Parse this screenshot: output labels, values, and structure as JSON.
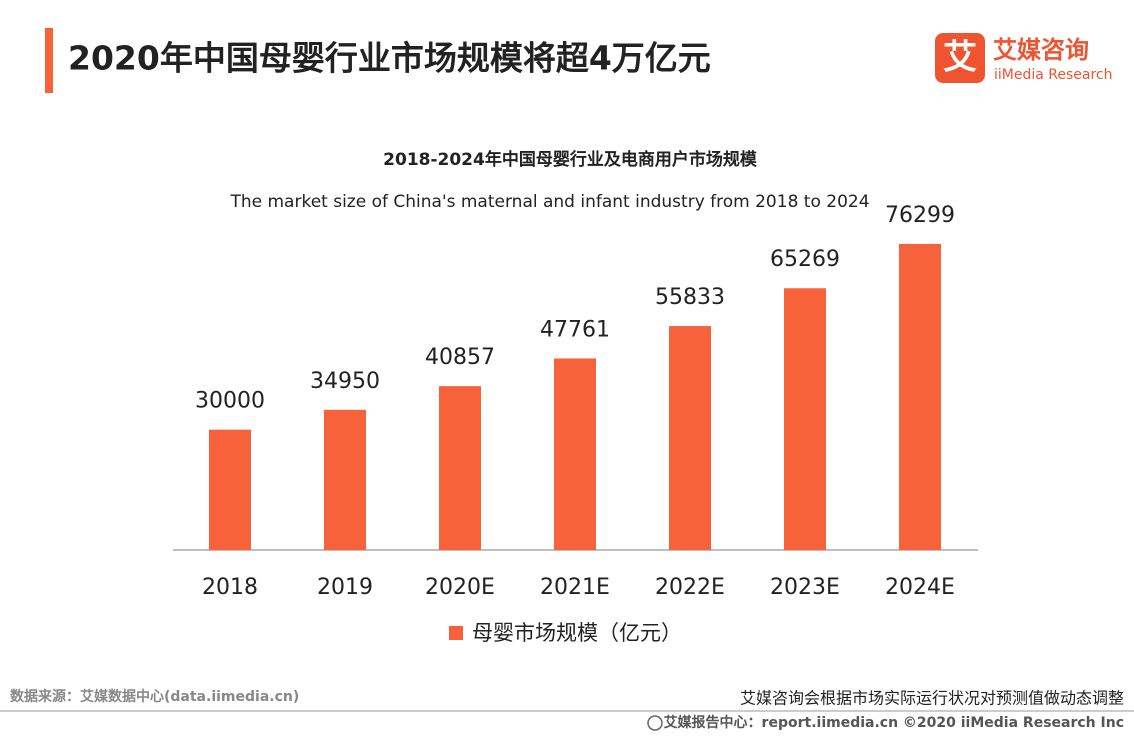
{
  "header": {
    "title": "2020年中国母婴行业市场规模将超4万亿元",
    "logo_mark": "艾",
    "logo_cn": "艾媒咨询",
    "logo_en": "iiMedia Research"
  },
  "chart_data": {
    "type": "bar",
    "title": "2018-2024年中国母婴行业及电商用户市场规模",
    "subtitle": "The market size of China's maternal and infant industry from 2018 to 2024",
    "categories": [
      "2018",
      "2019",
      "2020E",
      "2021E",
      "2022E",
      "2023E",
      "2024E"
    ],
    "series": [
      {
        "name": "母婴市场规模（亿元）",
        "color": "#f8623a",
        "values": [
          30000,
          34950,
          40857,
          47761,
          55833,
          65269,
          76299
        ]
      }
    ]
  },
  "footer": {
    "source": "数据来源：艾媒数据中心(data.iimedia.cn)",
    "note": "艾媒咨询会根据市场实际运行状况对预测值做动态调整",
    "credit": "艾媒报告中心：report.iimedia.cn   ©2020  iiMedia Research  Inc"
  }
}
